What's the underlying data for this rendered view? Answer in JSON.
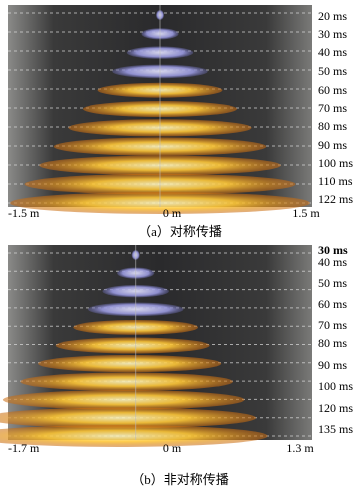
{
  "panels": [
    {
      "times": [
        "20 ms",
        "30 ms",
        "40 ms",
        "50 ms",
        "60 ms",
        "70 ms",
        "80 ms",
        "90 ms",
        "100 ms",
        "110 ms",
        "122 ms"
      ],
      "axis_labels": [
        "-1.5 m",
        "0 m",
        "1.5 m"
      ],
      "caption": "（a）对称传播"
    },
    {
      "times": [
        "30 ms",
        "40 ms",
        "50 ms",
        "60 ms",
        "70 ms",
        "80 ms",
        "90 ms",
        "100 ms",
        "120 ms",
        "135 ms"
      ],
      "axis_labels": [
        "-1.7 m",
        "0 m",
        "1.3 m"
      ],
      "caption": "（b）非对称传播"
    }
  ]
}
